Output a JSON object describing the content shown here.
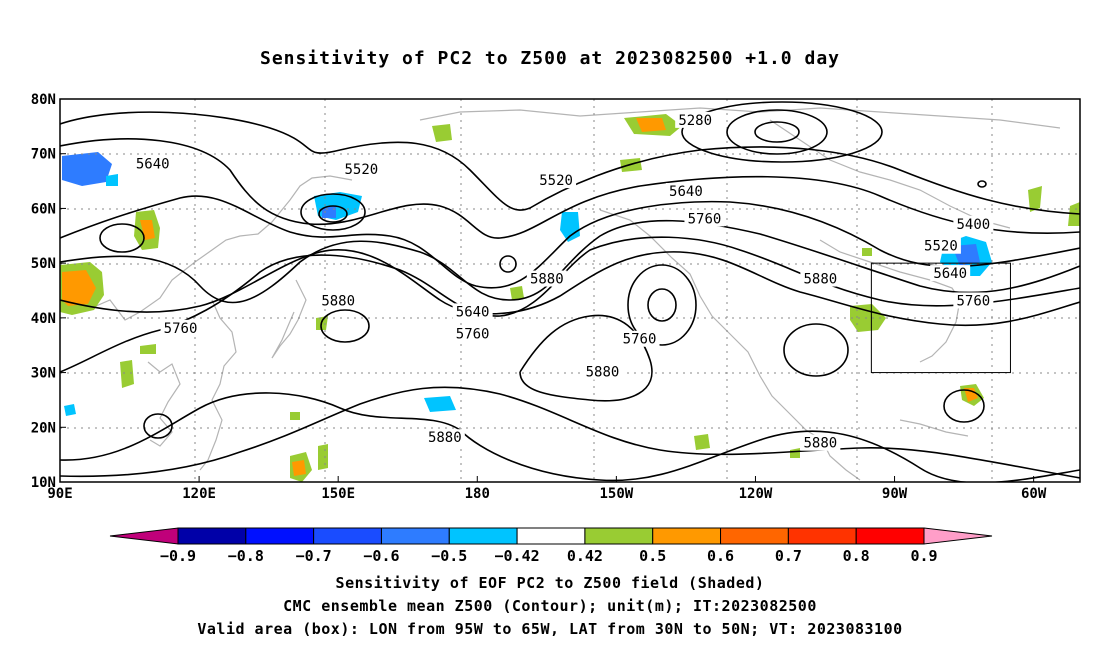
{
  "title": "Sensitivity of PC2 to Z500 at 2023082500 +1.0 day",
  "map": {
    "lat_ticks": [
      "80N",
      "70N",
      "60N",
      "50N",
      "40N",
      "30N",
      "20N",
      "10N"
    ],
    "lon_ticks": [
      "90E",
      "120E",
      "150E",
      "180",
      "150W",
      "120W",
      "90W",
      "60W"
    ],
    "contours": [
      {
        "label": "5640",
        "lon": 110,
        "lat": 68
      },
      {
        "label": "5520",
        "lon": 155,
        "lat": 67
      },
      {
        "label": "5520",
        "lon": 197,
        "lat": 65
      },
      {
        "label": "5280",
        "lon": 227,
        "lat": 76
      },
      {
        "label": "5640",
        "lon": 225,
        "lat": 63
      },
      {
        "label": "5760",
        "lon": 229,
        "lat": 58
      },
      {
        "label": "5400",
        "lon": 287,
        "lat": 57
      },
      {
        "label": "5520",
        "lon": 280,
        "lat": 53
      },
      {
        "label": "5640",
        "lon": 282,
        "lat": 48
      },
      {
        "label": "5760",
        "lon": 287,
        "lat": 43
      },
      {
        "label": "5880",
        "lon": 195,
        "lat": 47
      },
      {
        "label": "5880",
        "lon": 150,
        "lat": 43
      },
      {
        "label": "5640",
        "lon": 179,
        "lat": 41
      },
      {
        "label": "5760",
        "lon": 179,
        "lat": 37
      },
      {
        "label": "5760",
        "lon": 116,
        "lat": 38
      },
      {
        "label": "5760",
        "lon": 215,
        "lat": 36
      },
      {
        "label": "5880",
        "lon": 207,
        "lat": 30
      },
      {
        "label": "5880",
        "lon": 173,
        "lat": 18
      },
      {
        "label": "5880",
        "lon": 254,
        "lat": 47
      },
      {
        "label": "5880",
        "lon": 254,
        "lat": 17
      }
    ],
    "valid_box": {
      "lon_min": 265,
      "lon_max": 295,
      "lat_min": 30,
      "lat_max": 50
    }
  },
  "colorbar": {
    "labels": [
      "-0.9",
      "-0.8",
      "-0.7",
      "-0.6",
      "-0.5",
      "-0.42",
      "0.42",
      "0.5",
      "0.6",
      "0.7",
      "0.8",
      "0.9"
    ],
    "colors": [
      "#0000a8",
      "#0010ff",
      "#1a4cff",
      "#2e7cff",
      "#00c4ff",
      "#ffffff",
      "#99cc33",
      "#ff9900",
      "#ff6600",
      "#ff3300",
      "#ff0000"
    ],
    "low_color": "#c0007a",
    "high_color": "#ff9ec8"
  },
  "chart_data": {
    "type": "heatmap",
    "title": "Sensitivity of PC2 to Z500 at 2023082500 +1.0 day",
    "xlabel": "",
    "ylabel": "",
    "xlim": [
      90,
      310
    ],
    "ylim": [
      10,
      80
    ],
    "x_ticks": [
      "90E",
      "120E",
      "150E",
      "180",
      "150W",
      "120W",
      "90W",
      "60W"
    ],
    "y_ticks": [
      "10N",
      "20N",
      "30N",
      "40N",
      "50N",
      "60N",
      "70N",
      "80N"
    ],
    "grid": true,
    "colorbar_levels": [
      -0.9,
      -0.8,
      -0.7,
      -0.6,
      -0.5,
      -0.42,
      0.42,
      0.5,
      0.6,
      0.7,
      0.8,
      0.9
    ],
    "contour_levels": [
      5280,
      5400,
      5520,
      5640,
      5760,
      5880
    ],
    "shaded_regions": [
      {
        "lon": 94,
        "lat": 46,
        "value": 0.6
      },
      {
        "lon": 109,
        "lat": 56,
        "value": 0.6
      },
      {
        "lon": 94,
        "lat": 67,
        "value": -0.6
      },
      {
        "lon": 151,
        "lat": 61,
        "value": -0.5
      },
      {
        "lon": 198,
        "lat": 57,
        "value": -0.5
      },
      {
        "lon": 222,
        "lat": 74,
        "value": 0.6
      },
      {
        "lon": 284,
        "lat": 51,
        "value": -0.6
      },
      {
        "lon": 273,
        "lat": 39,
        "value": 0.5
      },
      {
        "lon": 287,
        "lat": 23,
        "value": 0.6
      },
      {
        "lon": 147,
        "lat": 12,
        "value": 0.6
      },
      {
        "lon": 172,
        "lat": 24,
        "value": -0.5
      },
      {
        "lon": 104,
        "lat": 31,
        "value": 0.5
      }
    ],
    "valid_box": {
      "lon": [
        265,
        295
      ],
      "lat": [
        30,
        50
      ]
    }
  },
  "caption": {
    "line1": "Sensitivity of EOF PC2 to Z500 field (Shaded)",
    "line2": "CMC ensemble mean Z500 (Contour); unit(m); IT:2023082500",
    "line3": "Valid area (box): LON from 95W to 65W, LAT from 30N to 50N; VT: 2023083100"
  }
}
